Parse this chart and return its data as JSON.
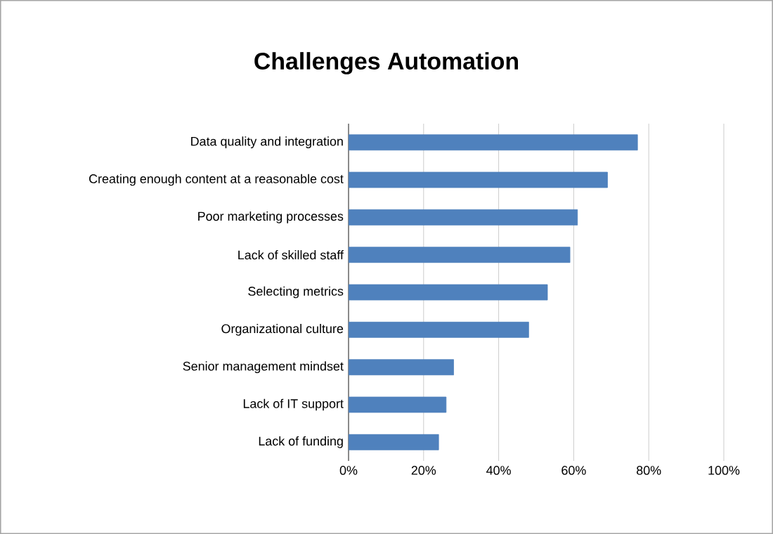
{
  "chart_data": {
    "type": "bar",
    "orientation": "horizontal",
    "title": "Challenges Automation",
    "categories": [
      "Data quality and integration",
      "Creating enough content at a reasonable cost",
      "Poor marketing processes",
      "Lack of skilled staff",
      "Selecting metrics",
      "Organizational culture",
      "Senior management mindset",
      "Lack of IT support",
      "Lack of funding"
    ],
    "values": [
      77,
      69,
      61,
      59,
      53,
      48,
      28,
      26,
      24
    ],
    "color": "#4f81bd",
    "xlim": [
      0,
      100
    ],
    "xticks": [
      {
        "value": 0,
        "label": "0%"
      },
      {
        "value": 20,
        "label": "20%"
      },
      {
        "value": 40,
        "label": "40%"
      },
      {
        "value": 60,
        "label": "60%"
      },
      {
        "value": 80,
        "label": "80%"
      },
      {
        "value": 100,
        "label": "100%"
      }
    ],
    "grid": "x"
  }
}
